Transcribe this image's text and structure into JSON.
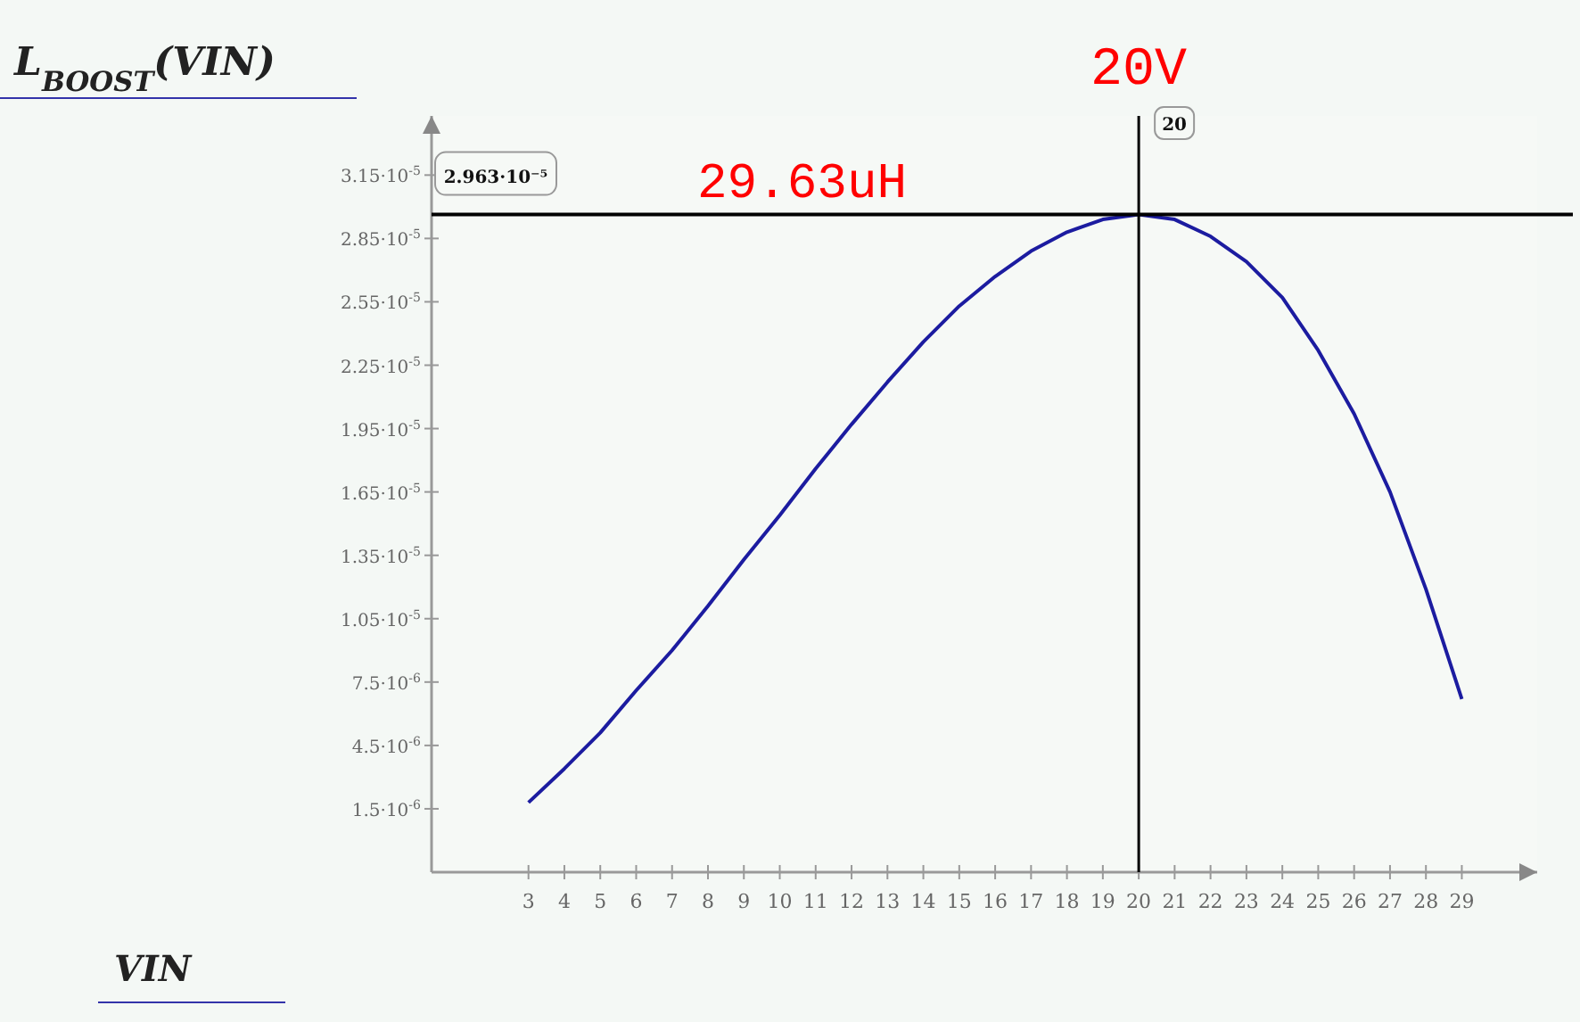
{
  "chart_data": {
    "type": "line",
    "ylabel": "L$_{BOOST}$(VIN)",
    "xlabel": "VIN",
    "x": [
      3,
      4,
      5,
      6,
      7,
      8,
      9,
      10,
      11,
      12,
      13,
      14,
      15,
      16,
      17,
      18,
      19,
      20,
      21,
      22,
      23,
      24,
      25,
      26,
      27,
      28,
      29
    ],
    "series": [
      {
        "color": "#1c1ca0",
        "values": [
          1.8e-06,
          3.4e-06,
          5.1e-06,
          7.1e-06,
          9e-06,
          1.11e-05,
          1.33e-05,
          1.54e-05,
          1.76e-05,
          1.97e-05,
          2.17e-05,
          2.36e-05,
          2.53e-05,
          2.67e-05,
          2.79e-05,
          2.88e-05,
          2.94e-05,
          2.963e-05,
          2.94e-05,
          2.86e-05,
          2.74e-05,
          2.57e-05,
          2.32e-05,
          2.02e-05,
          1.65e-05,
          1.19e-05,
          6.7e-06
        ]
      }
    ],
    "xlim": [
      0.3,
      31.1
    ],
    "xticks": [
      3,
      4,
      5,
      6,
      7,
      8,
      9,
      10,
      11,
      12,
      13,
      14,
      15,
      16,
      17,
      18,
      19,
      20,
      21,
      22,
      23,
      24,
      25,
      26,
      27,
      28,
      29
    ],
    "ylim": [
      -1.5e-06,
      3.43e-05
    ],
    "yticks": [
      {
        "value": 1.5e-06,
        "label": "1.5·10$^{-6}$"
      },
      {
        "value": 4.5e-06,
        "label": "4.5·10$^{-6}$"
      },
      {
        "value": 7.5e-06,
        "label": "7.5·10$^{-6}$"
      },
      {
        "value": 1.05e-05,
        "label": "1.05·10$^{-5}$"
      },
      {
        "value": 1.35e-05,
        "label": "1.35·10$^{-5}$"
      },
      {
        "value": 1.65e-05,
        "label": "1.65·10$^{-5}$"
      },
      {
        "value": 1.95e-05,
        "label": "1.95·10$^{-5}$"
      },
      {
        "value": 2.25e-05,
        "label": "2.25·10$^{-5}$"
      },
      {
        "value": 2.55e-05,
        "label": "2.55·10$^{-5}$"
      },
      {
        "value": 2.85e-05,
        "label": "2.85·10$^{-5}$"
      },
      {
        "value": 3.15e-05,
        "label": "3.15·10$^{-5}$"
      }
    ],
    "ref_lines": [
      {
        "axis": "x",
        "value": 20,
        "label": "20",
        "color": "#000000"
      },
      {
        "axis": "y",
        "value": 2.963e-05,
        "label": "2.963·10⁻⁵",
        "color": "#000000"
      }
    ],
    "annotations": [
      {
        "text": "20V",
        "x": 20,
        "y": 3.43e-05
      },
      {
        "text": "29.63uH",
        "x": 7.7,
        "y": 2.963e-05
      }
    ],
    "grid": false,
    "marker": "none",
    "line_style": "solid"
  }
}
